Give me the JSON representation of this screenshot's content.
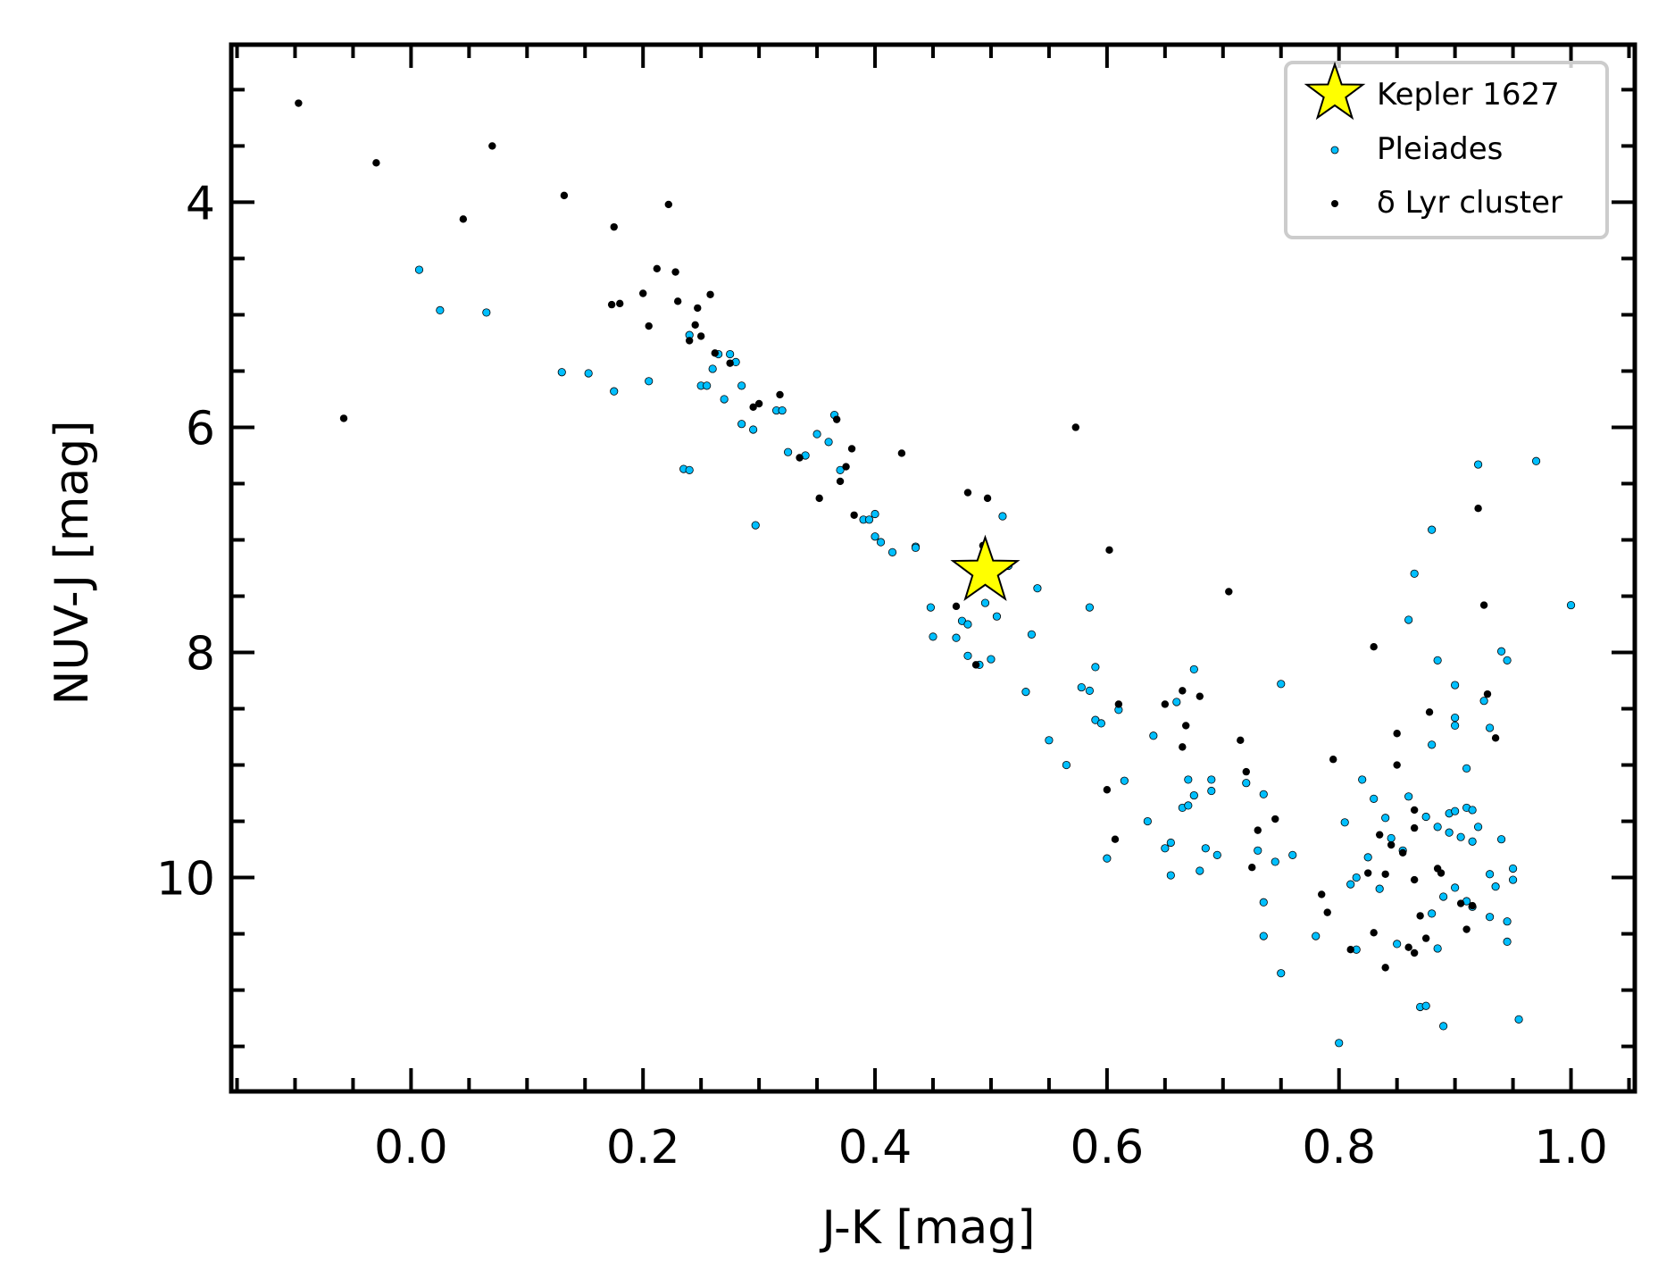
{
  "chart_data": {
    "type": "scatter",
    "title": "",
    "xlabel": "J-K [mag]",
    "ylabel": "NUV-J [mag]",
    "xlim": [
      -0.155,
      1.055
    ],
    "ylim": [
      11.9,
      2.6
    ],
    "y_inverted": true,
    "grid": false,
    "legend_position": "top-right",
    "x_ticks": [
      0.0,
      0.2,
      0.4,
      0.6,
      0.8,
      1.0
    ],
    "x_tick_labels": [
      "0.0",
      "0.2",
      "0.4",
      "0.6",
      "0.8",
      "1.0"
    ],
    "y_ticks": [
      4,
      6,
      8,
      10
    ],
    "y_tick_labels": [
      "4",
      "6",
      "8",
      "10"
    ],
    "series": [
      {
        "name": "Pleiades",
        "color": "#00bfff",
        "marker": "dot",
        "points": [
          [
            0.007,
            4.6
          ],
          [
            0.025,
            4.96
          ],
          [
            0.065,
            4.98
          ],
          [
            0.13,
            5.51
          ],
          [
            0.153,
            5.52
          ],
          [
            0.175,
            5.68
          ],
          [
            0.205,
            5.59
          ],
          [
            0.235,
            6.37
          ],
          [
            0.24,
            6.38
          ],
          [
            0.24,
            5.18
          ],
          [
            0.25,
            5.63
          ],
          [
            0.255,
            5.63
          ],
          [
            0.26,
            5.48
          ],
          [
            0.265,
            5.35
          ],
          [
            0.27,
            5.75
          ],
          [
            0.275,
            5.35
          ],
          [
            0.28,
            5.42
          ],
          [
            0.285,
            5.63
          ],
          [
            0.285,
            5.97
          ],
          [
            0.295,
            6.02
          ],
          [
            0.297,
            6.87
          ],
          [
            0.315,
            5.85
          ],
          [
            0.32,
            5.85
          ],
          [
            0.325,
            6.22
          ],
          [
            0.34,
            6.25
          ],
          [
            0.35,
            6.06
          ],
          [
            0.36,
            6.13
          ],
          [
            0.365,
            5.89
          ],
          [
            0.37,
            6.38
          ],
          [
            0.39,
            6.82
          ],
          [
            0.395,
            6.82
          ],
          [
            0.4,
            6.77
          ],
          [
            0.4,
            6.97
          ],
          [
            0.405,
            7.02
          ],
          [
            0.415,
            7.11
          ],
          [
            0.435,
            7.06
          ],
          [
            0.435,
            7.07
          ],
          [
            0.448,
            7.6
          ],
          [
            0.45,
            7.86
          ],
          [
            0.47,
            7.87
          ],
          [
            0.475,
            7.72
          ],
          [
            0.48,
            7.75
          ],
          [
            0.48,
            8.03
          ],
          [
            0.49,
            8.11
          ],
          [
            0.495,
            7.56
          ],
          [
            0.5,
            8.06
          ],
          [
            0.505,
            7.68
          ],
          [
            0.51,
            6.79
          ],
          [
            0.515,
            7.23
          ],
          [
            0.53,
            8.35
          ],
          [
            0.535,
            7.84
          ],
          [
            0.54,
            7.43
          ],
          [
            0.55,
            8.78
          ],
          [
            0.565,
            9.0
          ],
          [
            0.578,
            8.31
          ],
          [
            0.585,
            7.6
          ],
          [
            0.585,
            8.34
          ],
          [
            0.59,
            8.6
          ],
          [
            0.59,
            8.13
          ],
          [
            0.595,
            8.63
          ],
          [
            0.6,
            9.83
          ],
          [
            0.61,
            8.51
          ],
          [
            0.615,
            9.14
          ],
          [
            0.635,
            9.5
          ],
          [
            0.64,
            8.74
          ],
          [
            0.65,
            9.74
          ],
          [
            0.655,
            9.98
          ],
          [
            0.655,
            9.69
          ],
          [
            0.66,
            8.44
          ],
          [
            0.665,
            9.38
          ],
          [
            0.67,
            9.13
          ],
          [
            0.67,
            9.36
          ],
          [
            0.675,
            9.27
          ],
          [
            0.675,
            8.15
          ],
          [
            0.68,
            9.94
          ],
          [
            0.685,
            9.74
          ],
          [
            0.69,
            9.13
          ],
          [
            0.69,
            9.23
          ],
          [
            0.695,
            9.8
          ],
          [
            0.72,
            9.16
          ],
          [
            0.73,
            9.76
          ],
          [
            0.735,
            10.22
          ],
          [
            0.735,
            10.52
          ],
          [
            0.735,
            9.26
          ],
          [
            0.745,
            9.86
          ],
          [
            0.75,
            10.85
          ],
          [
            0.75,
            8.28
          ],
          [
            0.76,
            9.8
          ],
          [
            0.78,
            10.52
          ],
          [
            0.8,
            11.47
          ],
          [
            0.805,
            9.51
          ],
          [
            0.81,
            10.06
          ],
          [
            0.815,
            10.0
          ],
          [
            0.815,
            10.64
          ],
          [
            0.82,
            9.13
          ],
          [
            0.825,
            9.82
          ],
          [
            0.83,
            9.3
          ],
          [
            0.835,
            10.1
          ],
          [
            0.84,
            9.47
          ],
          [
            0.845,
            9.65
          ],
          [
            0.85,
            10.59
          ],
          [
            0.855,
            9.76
          ],
          [
            0.86,
            7.71
          ],
          [
            0.86,
            9.28
          ],
          [
            0.865,
            7.3
          ],
          [
            0.87,
            11.15
          ],
          [
            0.875,
            11.14
          ],
          [
            0.875,
            9.46
          ],
          [
            0.88,
            6.91
          ],
          [
            0.88,
            8.82
          ],
          [
            0.88,
            10.32
          ],
          [
            0.885,
            8.07
          ],
          [
            0.885,
            9.55
          ],
          [
            0.885,
            10.63
          ],
          [
            0.89,
            10.17
          ],
          [
            0.89,
            11.32
          ],
          [
            0.895,
            9.6
          ],
          [
            0.895,
            9.43
          ],
          [
            0.9,
            8.58
          ],
          [
            0.9,
            9.41
          ],
          [
            0.9,
            8.29
          ],
          [
            0.9,
            10.09
          ],
          [
            0.9,
            8.65
          ],
          [
            0.905,
            9.64
          ],
          [
            0.91,
            9.38
          ],
          [
            0.91,
            10.21
          ],
          [
            0.91,
            9.03
          ],
          [
            0.915,
            9.4
          ],
          [
            0.915,
            9.68
          ],
          [
            0.915,
            10.26
          ],
          [
            0.92,
            9.55
          ],
          [
            0.92,
            6.33
          ],
          [
            0.925,
            8.43
          ],
          [
            0.93,
            9.97
          ],
          [
            0.93,
            10.35
          ],
          [
            0.93,
            8.67
          ],
          [
            0.935,
            10.08
          ],
          [
            0.94,
            9.66
          ],
          [
            0.94,
            7.99
          ],
          [
            0.945,
            8.07
          ],
          [
            0.945,
            10.39
          ],
          [
            0.945,
            10.57
          ],
          [
            0.95,
            9.92
          ],
          [
            0.95,
            10.02
          ],
          [
            0.955,
            11.26
          ],
          [
            0.97,
            6.3
          ],
          [
            1.0,
            7.58
          ]
        ]
      },
      {
        "name": "δ Lyr cluster",
        "color": "#000000",
        "marker": "dot",
        "points": [
          [
            -0.097,
            3.12
          ],
          [
            -0.058,
            5.92
          ],
          [
            -0.03,
            3.65
          ],
          [
            0.045,
            4.15
          ],
          [
            0.07,
            3.5
          ],
          [
            0.132,
            3.94
          ],
          [
            0.173,
            4.91
          ],
          [
            0.175,
            4.22
          ],
          [
            0.18,
            4.9
          ],
          [
            0.2,
            4.81
          ],
          [
            0.205,
            5.1
          ],
          [
            0.212,
            4.59
          ],
          [
            0.222,
            4.02
          ],
          [
            0.228,
            4.62
          ],
          [
            0.23,
            4.88
          ],
          [
            0.24,
            5.23
          ],
          [
            0.245,
            5.09
          ],
          [
            0.247,
            4.94
          ],
          [
            0.25,
            5.19
          ],
          [
            0.258,
            4.82
          ],
          [
            0.262,
            5.34
          ],
          [
            0.275,
            5.43
          ],
          [
            0.295,
            5.82
          ],
          [
            0.3,
            5.79
          ],
          [
            0.318,
            5.71
          ],
          [
            0.335,
            6.27
          ],
          [
            0.352,
            6.63
          ],
          [
            0.367,
            5.93
          ],
          [
            0.37,
            6.48
          ],
          [
            0.375,
            6.35
          ],
          [
            0.38,
            6.19
          ],
          [
            0.382,
            6.78
          ],
          [
            0.423,
            6.23
          ],
          [
            0.47,
            7.59
          ],
          [
            0.48,
            6.58
          ],
          [
            0.487,
            8.11
          ],
          [
            0.493,
            7.05
          ],
          [
            0.497,
            6.63
          ],
          [
            0.573,
            6.0
          ],
          [
            0.6,
            9.22
          ],
          [
            0.602,
            7.09
          ],
          [
            0.607,
            9.66
          ],
          [
            0.61,
            8.46
          ],
          [
            0.65,
            8.46
          ],
          [
            0.665,
            8.34
          ],
          [
            0.665,
            8.84
          ],
          [
            0.668,
            8.65
          ],
          [
            0.68,
            8.39
          ],
          [
            0.705,
            7.46
          ],
          [
            0.715,
            8.78
          ],
          [
            0.72,
            9.06
          ],
          [
            0.725,
            9.91
          ],
          [
            0.73,
            9.58
          ],
          [
            0.745,
            9.48
          ],
          [
            0.785,
            10.15
          ],
          [
            0.79,
            10.31
          ],
          [
            0.795,
            8.95
          ],
          [
            0.81,
            10.64
          ],
          [
            0.825,
            9.96
          ],
          [
            0.83,
            10.49
          ],
          [
            0.83,
            7.95
          ],
          [
            0.835,
            9.62
          ],
          [
            0.84,
            9.97
          ],
          [
            0.84,
            10.8
          ],
          [
            0.845,
            9.71
          ],
          [
            0.85,
            8.72
          ],
          [
            0.85,
            9.0
          ],
          [
            0.855,
            9.78
          ],
          [
            0.86,
            10.62
          ],
          [
            0.865,
            9.56
          ],
          [
            0.865,
            10.02
          ],
          [
            0.865,
            9.4
          ],
          [
            0.865,
            10.67
          ],
          [
            0.87,
            10.34
          ],
          [
            0.875,
            10.54
          ],
          [
            0.878,
            8.53
          ],
          [
            0.885,
            9.92
          ],
          [
            0.888,
            9.96
          ],
          [
            0.905,
            10.23
          ],
          [
            0.91,
            10.46
          ],
          [
            0.915,
            10.25
          ],
          [
            0.92,
            6.72
          ],
          [
            0.925,
            7.58
          ],
          [
            0.928,
            8.37
          ],
          [
            0.935,
            8.76
          ]
        ]
      },
      {
        "name": "Kepler 1627",
        "color": "#ffff00",
        "marker": "star",
        "points": [
          [
            0.495,
            7.28
          ]
        ]
      }
    ]
  },
  "colors": {
    "pleiades": "#00bfff",
    "delta_lyr": "#000000",
    "kepler_star": "#ffff00",
    "axis": "#000000"
  }
}
